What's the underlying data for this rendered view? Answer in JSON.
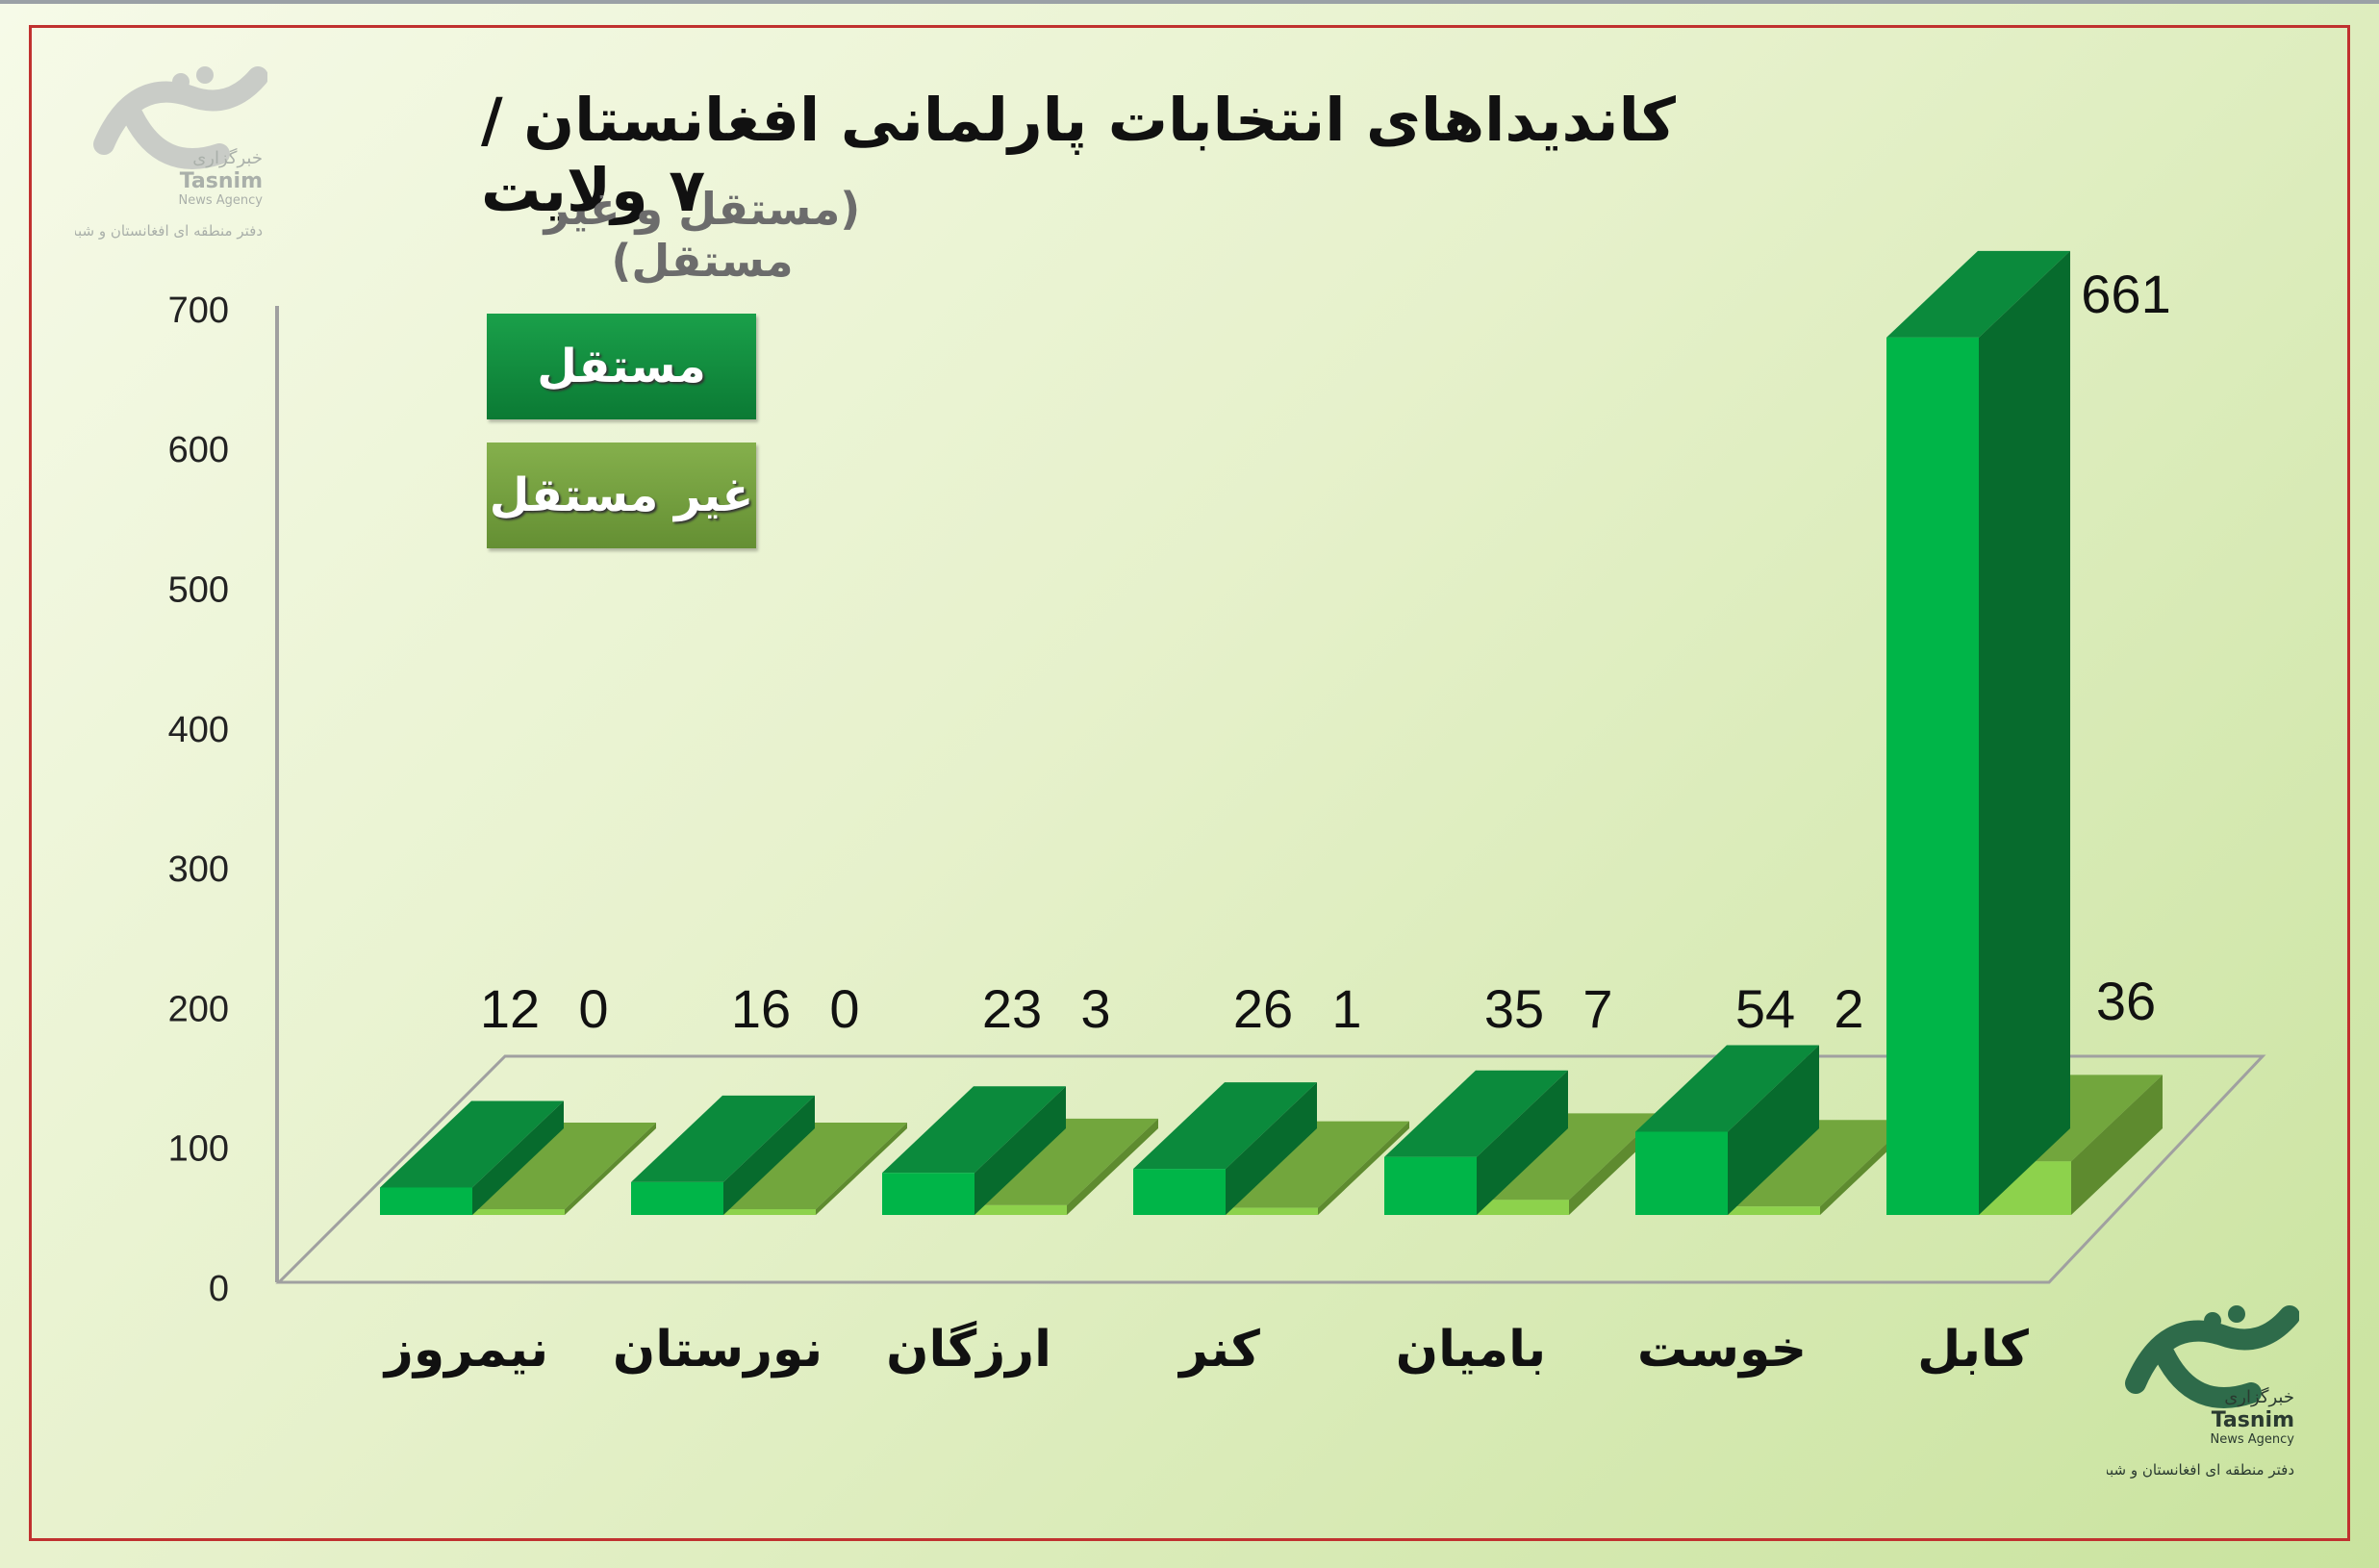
{
  "header": {
    "title": "کاندیداهای انتخابات پارلمانی افغانستان / ۷ ولایت",
    "subtitle": "(مستقل و غیر مستقل)"
  },
  "logo": {
    "mark": "تسنیم",
    "name_fa": "خبرگزاری",
    "name_en": "Tasnim",
    "tagline_en": "News Agency",
    "office": "دفتر منطقه ای افغانستان و شبه قاره"
  },
  "colors": {
    "independent_front": "#00b548",
    "independent_top": "#0b8a3c",
    "independent_side": "#076b2d",
    "dependent_front": "#8dd24c",
    "dependent_top": "#72a63d",
    "dependent_side": "#5e8b2f",
    "frame": "#c0312f"
  },
  "chart_data": {
    "type": "bar",
    "title": "کاندیداهای انتخابات پارلمانی افغانستان / ۷ ولایت",
    "subtitle": "(مستقل و غیر مستقل)",
    "categories": [
      "نیمروز",
      "نورستان",
      "ارزگان",
      "کنر",
      "بامیان",
      "خوست",
      "کابل"
    ],
    "series": [
      {
        "name": "مستقل",
        "values": [
          12,
          16,
          23,
          26,
          35,
          54,
          661
        ]
      },
      {
        "name": "غیر مستقل",
        "values": [
          0,
          0,
          3,
          1,
          7,
          2,
          36
        ]
      }
    ],
    "ylim": [
      0,
      700
    ],
    "yticks": [
      "0",
      "100",
      "200",
      "300",
      "400",
      "500",
      "600",
      "700"
    ],
    "value_labels": [
      [
        "12",
        "0"
      ],
      [
        "16",
        "0"
      ],
      [
        "23",
        "3"
      ],
      [
        "26",
        "1"
      ],
      [
        "35",
        "7"
      ],
      [
        "54",
        "2"
      ],
      [
        "661",
        "36"
      ]
    ],
    "legend_position": "top-left",
    "grid": false
  }
}
